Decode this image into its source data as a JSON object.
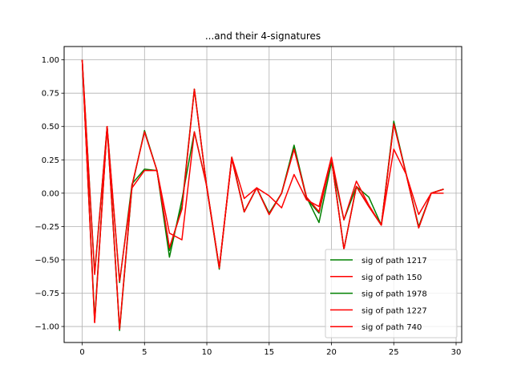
{
  "chart_data": {
    "type": "line",
    "title": "...and their 4-signatures",
    "xlabel": "",
    "ylabel": "",
    "xlim": [
      -1.45,
      30.45
    ],
    "ylim": [
      -1.12,
      1.1
    ],
    "xticks": [
      0,
      5,
      10,
      15,
      20,
      25,
      30
    ],
    "yticks": [
      -1.0,
      -0.75,
      -0.5,
      -0.25,
      0.0,
      0.25,
      0.5,
      0.75,
      1.0
    ],
    "ytick_labels": [
      "−1.00",
      "−0.75",
      "−0.50",
      "−0.25",
      "0.00",
      "0.25",
      "0.50",
      "0.75",
      "1.00"
    ],
    "grid": true,
    "legend_position": "lower-right",
    "x": [
      0,
      1,
      2,
      3,
      4,
      5,
      6,
      7,
      8,
      9,
      10,
      11,
      12,
      13,
      14,
      15,
      16,
      17,
      18,
      19,
      20,
      21,
      22,
      23,
      24,
      25,
      26,
      27,
      28,
      29
    ],
    "series": [
      {
        "name": "sig of path 1217",
        "color": "#008000",
        "values": [
          1.0,
          -0.6,
          0.5,
          -0.67,
          0.07,
          0.18,
          0.17,
          -0.48,
          -0.05,
          0.46,
          0.05,
          -0.56,
          0.26,
          -0.14,
          0.04,
          -0.16,
          0.0,
          0.36,
          -0.03,
          -0.22,
          0.23,
          -0.2,
          0.05,
          -0.03,
          -0.24,
          0.54,
          0.14,
          -0.26,
          0.0,
          0.03
        ]
      },
      {
        "name": "sig of path 150",
        "color": "#ff0000",
        "values": [
          1.0,
          -0.97,
          0.5,
          -1.02,
          0.06,
          0.46,
          0.17,
          -0.41,
          -0.12,
          0.78,
          0.04,
          -0.56,
          0.26,
          -0.14,
          0.04,
          -0.16,
          0.0,
          0.33,
          -0.03,
          -0.14,
          0.26,
          -0.42,
          0.05,
          -0.1,
          -0.24,
          0.52,
          0.14,
          -0.26,
          0.0,
          0.03
        ]
      },
      {
        "name": "sig of path 1978",
        "color": "#008000",
        "values": [
          1.0,
          -0.95,
          0.5,
          -1.03,
          0.05,
          0.47,
          0.17,
          -0.43,
          -0.1,
          0.78,
          0.04,
          -0.57,
          0.27,
          -0.14,
          0.04,
          -0.15,
          0.0,
          0.34,
          -0.04,
          -0.15,
          0.26,
          -0.42,
          0.05,
          -0.1,
          -0.24,
          0.53,
          0.14,
          -0.25,
          0.0,
          0.03
        ]
      },
      {
        "name": "sig of path 1227",
        "color": "#ff0000",
        "values": [
          1.0,
          -0.61,
          0.5,
          -0.66,
          0.04,
          0.17,
          0.17,
          -0.3,
          -0.35,
          0.46,
          0.05,
          -0.56,
          0.27,
          -0.04,
          0.04,
          -0.02,
          -0.11,
          0.14,
          -0.05,
          -0.1,
          0.27,
          -0.2,
          0.09,
          -0.09,
          -0.24,
          0.33,
          0.14,
          -0.16,
          0.0,
          0.0
        ]
      },
      {
        "name": "sig of path 740",
        "color": "#ff0000",
        "values": [
          1.0,
          -0.97,
          0.5,
          -1.02,
          0.06,
          0.46,
          0.17,
          -0.41,
          -0.12,
          0.78,
          0.04,
          -0.56,
          0.26,
          -0.14,
          0.04,
          -0.16,
          0.0,
          0.33,
          -0.03,
          -0.14,
          0.26,
          -0.42,
          0.05,
          -0.1,
          -0.24,
          0.52,
          0.14,
          -0.26,
          0.0,
          0.03
        ]
      }
    ]
  }
}
